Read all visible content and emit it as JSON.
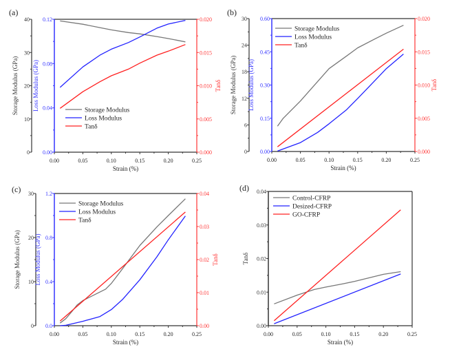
{
  "colors": {
    "storage": "#777777",
    "loss": "#2222ff",
    "tan": "#ff2020",
    "axis": "#333333",
    "loss_axis": "#3333ff",
    "tan_axis": "#ff3333"
  },
  "chart_data": [
    {
      "panel_label": "(a)",
      "type": "line",
      "xlabel": "Strain (%)",
      "xlim": [
        0,
        0.25
      ],
      "xticks": [
        "0.00",
        "0.05",
        "0.10",
        "0.15",
        "0.20",
        "0.25"
      ],
      "axes": {
        "storage": {
          "label": "Storage Modulus (GPa)",
          "lim": [
            0,
            40
          ],
          "ticks": [
            "0",
            "10",
            "20",
            "30",
            "40"
          ]
        },
        "loss": {
          "label": "Loss Modulus (GPa)",
          "lim": [
            0,
            0.12
          ],
          "ticks": [
            "0.00",
            "0.04",
            "0.08",
            "0.12"
          ]
        },
        "tan": {
          "label": "Tanδ",
          "lim": [
            0,
            0.02
          ],
          "ticks": [
            "0.000",
            "0.005",
            "0.010",
            "0.015",
            "0.020"
          ]
        }
      },
      "legend_position": "lower-left",
      "series": [
        {
          "name": "Storage Modulus",
          "axis": "storage",
          "color_key": "storage",
          "x": [
            0.01,
            0.05,
            0.08,
            0.1,
            0.13,
            0.15,
            0.18,
            0.2,
            0.23
          ],
          "y": [
            39.5,
            38.5,
            37.5,
            36.8,
            36.0,
            35.6,
            34.8,
            34.2,
            33.2
          ]
        },
        {
          "name": "Loss Modulus",
          "axis": "loss",
          "color_key": "loss",
          "x": [
            0.01,
            0.05,
            0.08,
            0.1,
            0.13,
            0.15,
            0.18,
            0.2,
            0.23
          ],
          "y": [
            0.0585,
            0.077,
            0.0876,
            0.093,
            0.099,
            0.104,
            0.112,
            0.1157,
            0.119
          ]
        },
        {
          "name": "Tanδ",
          "axis": "tan",
          "color_key": "tan",
          "x": [
            0.01,
            0.05,
            0.08,
            0.1,
            0.13,
            0.15,
            0.18,
            0.2,
            0.23
          ],
          "y": [
            0.0066,
            0.0091,
            0.0106,
            0.0115,
            0.0125,
            0.0134,
            0.0146,
            0.0152,
            0.0162
          ]
        }
      ]
    },
    {
      "panel_label": "(b)",
      "type": "line",
      "xlabel": "Strain (%)",
      "xlim": [
        0,
        0.25
      ],
      "xticks": [
        "0.00",
        "0.05",
        "0.10",
        "0.15",
        "0.20",
        "0.25"
      ],
      "axes": {
        "storage": {
          "label": "Storage Modulus (GPa)",
          "lim": [
            0,
            30
          ],
          "ticks": [
            "0",
            "6",
            "12",
            "18",
            "24",
            "30"
          ]
        },
        "loss": {
          "label": "Loss Modulus (GPa)",
          "lim": [
            0,
            0.6
          ],
          "ticks": [
            "0.00",
            "0.15",
            "0.30",
            "0.45",
            "0.60"
          ]
        },
        "tan": {
          "label": "Tanδ",
          "lim": [
            0,
            0.02
          ],
          "ticks": [
            "0.000",
            "0.005",
            "0.010",
            "0.015",
            "0.020"
          ]
        }
      },
      "legend_position": "top-left",
      "series": [
        {
          "name": "Storage Modulus",
          "axis": "storage",
          "color_key": "storage",
          "x": [
            0.01,
            0.02,
            0.05,
            0.08,
            0.1,
            0.13,
            0.15,
            0.18,
            0.2,
            0.23
          ],
          "y": [
            5.7,
            7.5,
            11.4,
            15.8,
            18.7,
            21.5,
            23.4,
            25.4,
            26.7,
            28.5
          ]
        },
        {
          "name": "Loss Modulus",
          "axis": "loss",
          "color_key": "loss",
          "x": [
            0.01,
            0.05,
            0.08,
            0.1,
            0.13,
            0.15,
            0.18,
            0.2,
            0.23
          ],
          "y": [
            0.002,
            0.04,
            0.086,
            0.125,
            0.187,
            0.239,
            0.32,
            0.374,
            0.44
          ]
        },
        {
          "name": "Tanδ",
          "axis": "tan",
          "color_key": "tan",
          "x": [
            0.01,
            0.23
          ],
          "y": [
            0.0007,
            0.0154
          ]
        }
      ]
    },
    {
      "panel_label": "(c)",
      "type": "line",
      "xlabel": "Strain (%)",
      "xlim": [
        0,
        0.25
      ],
      "xticks": [
        "0.00",
        "0.05",
        "0.10",
        "0.15",
        "0.20",
        "0.25"
      ],
      "axes": {
        "storage": {
          "label": "Storage Modulus (GPa)",
          "lim": [
            0,
            30
          ],
          "ticks": [
            "0",
            "10",
            "20",
            "30"
          ]
        },
        "loss": {
          "label": "Loss Modulus (GPa)",
          "lim": [
            0,
            1.2
          ],
          "ticks": [
            "0.0",
            "0.4",
            "0.8",
            "1.2"
          ]
        },
        "tan": {
          "label": "Tanδ",
          "lim": [
            0,
            0.04
          ],
          "ticks": [
            "0.00",
            "0.01",
            "0.02",
            "0.03",
            "0.04"
          ]
        }
      },
      "legend_position": "top-left",
      "series": [
        {
          "name": "Storage Modulus",
          "axis": "storage",
          "color_key": "storage",
          "x": [
            0.01,
            0.02,
            0.03,
            0.04,
            0.05,
            0.07,
            0.09,
            0.1,
            0.12,
            0.15,
            0.18,
            0.2,
            0.23
          ],
          "y": [
            0.6,
            1.6,
            3.1,
            4.7,
            5.7,
            7.0,
            8.3,
            9.6,
            13.0,
            18.2,
            22.4,
            25.0,
            28.8
          ]
        },
        {
          "name": "Loss Modulus",
          "axis": "loss",
          "color_key": "loss",
          "x": [
            0.01,
            0.02,
            0.05,
            0.08,
            0.1,
            0.12,
            0.15,
            0.18,
            0.2,
            0.23
          ],
          "y": [
            0,
            0.004,
            0.04,
            0.083,
            0.146,
            0.24,
            0.417,
            0.625,
            0.78,
            0.996
          ]
        },
        {
          "name": "Tanδ",
          "axis": "tan",
          "color_key": "tan",
          "x": [
            0.01,
            0.23
          ],
          "y": [
            0.0014,
            0.0344
          ]
        }
      ]
    },
    {
      "panel_label": "(d)",
      "type": "line",
      "xlabel": "Strain (%)",
      "xlim": [
        0,
        0.25
      ],
      "xticks": [
        "0.00",
        "0.05",
        "0.10",
        "0.15",
        "0.20",
        "0.25"
      ],
      "axes": {
        "tan": {
          "label": "Tanδ",
          "lim": [
            0,
            0.04
          ],
          "ticks": [
            "0.00",
            "0.01",
            "0.02",
            "0.03",
            "0.04"
          ]
        }
      },
      "legend_position": "top-left",
      "series": [
        {
          "name": "Control-CFRP",
          "axis": "tan",
          "color_key": "storage",
          "x": [
            0.01,
            0.05,
            0.08,
            0.1,
            0.13,
            0.15,
            0.2,
            0.23
          ],
          "y": [
            0.0065,
            0.0091,
            0.0108,
            0.0115,
            0.0125,
            0.0132,
            0.0153,
            0.0161
          ]
        },
        {
          "name": "Desized-CFRP",
          "axis": "tan",
          "color_key": "loss",
          "x": [
            0.01,
            0.23
          ],
          "y": [
            0.0006,
            0.0154
          ]
        },
        {
          "name": "GO-CFRP",
          "axis": "tan",
          "color_key": "tan",
          "x": [
            0.01,
            0.23
          ],
          "y": [
            0.0015,
            0.0345
          ]
        }
      ]
    }
  ]
}
